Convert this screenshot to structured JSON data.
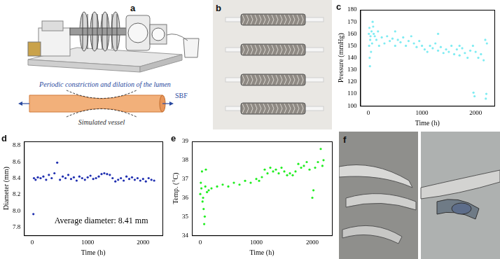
{
  "panel_a": {
    "label": "a",
    "annotations": [
      "Periodic constriction and dilation of the lumen",
      "Simulated vessel",
      "SBF"
    ]
  },
  "panel_b": {
    "label": "b"
  },
  "panel_f": {
    "label": "f"
  },
  "chart_data": [
    {
      "panel": "c",
      "type": "scatter",
      "xlabel": "Time (h)",
      "ylabel": "Pressure (mmHg)",
      "color": "#7fecf2",
      "marker": "circle",
      "grid": false,
      "xlim": [
        -150,
        2350
      ],
      "xticks": [
        0,
        1000,
        2000
      ],
      "ylim": [
        100,
        180
      ],
      "yticks": [
        100,
        110,
        120,
        130,
        140,
        150,
        160,
        170,
        180
      ],
      "x": [
        10,
        15,
        20,
        25,
        30,
        35,
        40,
        50,
        60,
        70,
        80,
        90,
        100,
        120,
        150,
        180,
        200,
        250,
        300,
        350,
        400,
        450,
        500,
        500,
        550,
        600,
        650,
        700,
        750,
        800,
        850,
        900,
        950,
        1000,
        1050,
        1100,
        1150,
        1200,
        1250,
        1300,
        1300,
        1350,
        1400,
        1450,
        1500,
        1550,
        1600,
        1650,
        1700,
        1700,
        1750,
        1800,
        1850,
        1900,
        1950,
        1960,
        1980,
        2000,
        2050,
        2100,
        2150,
        2180,
        2190,
        2200,
        2210
      ],
      "values": [
        160,
        150,
        165,
        140,
        133,
        155,
        158,
        145,
        162,
        152,
        170,
        166,
        160,
        158,
        155,
        162,
        150,
        157,
        152,
        158,
        154,
        156,
        150,
        162,
        155,
        153,
        157,
        150,
        154,
        158,
        152,
        149,
        154,
        150,
        147,
        145,
        150,
        148,
        152,
        146,
        160,
        149,
        144,
        147,
        145,
        150,
        143,
        147,
        142,
        150,
        148,
        144,
        140,
        146,
        150,
        111,
        108,
        145,
        140,
        143,
        138,
        155,
        106,
        110,
        152
      ]
    },
    {
      "panel": "d",
      "type": "scatter",
      "xlabel": "Time (h)",
      "ylabel": "Diameter (mm)",
      "color": "#1f2fb0",
      "marker": "circle",
      "grid": false,
      "annotations": [
        "Average diameter: 8.41 mm"
      ],
      "xlim": [
        -150,
        2350
      ],
      "xticks": [
        0,
        1000,
        2000
      ],
      "ylim": [
        7.7,
        8.85
      ],
      "yticks": [
        7.8,
        {
          "value": 8,
          "label": "8.0"
        },
        8.2,
        8.4,
        8.6,
        8.8
      ],
      "x": [
        20,
        30,
        60,
        100,
        150,
        200,
        250,
        300,
        350,
        400,
        450,
        500,
        550,
        600,
        650,
        700,
        750,
        800,
        850,
        900,
        950,
        1000,
        1050,
        1100,
        1150,
        1200,
        1250,
        1300,
        1350,
        1400,
        1450,
        1500,
        1550,
        1600,
        1650,
        1700,
        1750,
        1800,
        1850,
        1900,
        1950,
        2000,
        2050,
        2100,
        2150,
        2200
      ],
      "values": [
        7.96,
        8.4,
        8.38,
        8.41,
        8.4,
        8.42,
        8.38,
        8.44,
        8.4,
        8.46,
        8.59,
        8.38,
        8.42,
        8.4,
        8.44,
        8.39,
        8.41,
        8.37,
        8.42,
        8.4,
        8.38,
        8.41,
        8.43,
        8.39,
        8.4,
        8.42,
        8.45,
        8.46,
        8.45,
        8.44,
        8.4,
        8.36,
        8.38,
        8.4,
        8.37,
        8.42,
        8.39,
        8.41,
        8.38,
        8.4,
        8.37,
        8.39,
        8.36,
        8.4,
        8.38,
        8.37
      ]
    },
    {
      "panel": "e",
      "type": "scatter",
      "xlabel": "Time (h)",
      "ylabel": "Temp. (°C)",
      "color": "#22ee22",
      "marker": "circle",
      "grid": false,
      "xlim": [
        -150,
        2350
      ],
      "xticks": [
        0,
        1000,
        2000
      ],
      "ylim": [
        34,
        39
      ],
      "yticks": [
        34,
        35,
        36,
        37,
        38,
        39
      ],
      "x": [
        0,
        10,
        20,
        30,
        40,
        50,
        60,
        70,
        80,
        90,
        100,
        120,
        150,
        200,
        300,
        400,
        500,
        600,
        700,
        800,
        900,
        1000,
        1050,
        1100,
        1150,
        1200,
        1250,
        1300,
        1350,
        1400,
        1450,
        1500,
        1550,
        1600,
        1650,
        1700,
        1750,
        1800,
        1850,
        1900,
        1950,
        2000,
        2020,
        2050,
        2100,
        2150,
        2180,
        2200
      ],
      "values": [
        36.2,
        36.8,
        36.5,
        37.4,
        35.8,
        36.0,
        35.4,
        34.6,
        35.0,
        36.6,
        37.5,
        36.3,
        36.4,
        36.5,
        36.6,
        36.7,
        36.6,
        36.8,
        36.7,
        36.9,
        36.8,
        37.0,
        36.9,
        37.1,
        37.5,
        37.3,
        37.6,
        37.4,
        37.5,
        37.3,
        37.6,
        37.4,
        37.2,
        37.3,
        37.2,
        37.4,
        37.8,
        37.6,
        37.7,
        37.9,
        37.5,
        36.0,
        36.4,
        37.6,
        37.9,
        38.6,
        37.7,
        38.0
      ]
    }
  ]
}
